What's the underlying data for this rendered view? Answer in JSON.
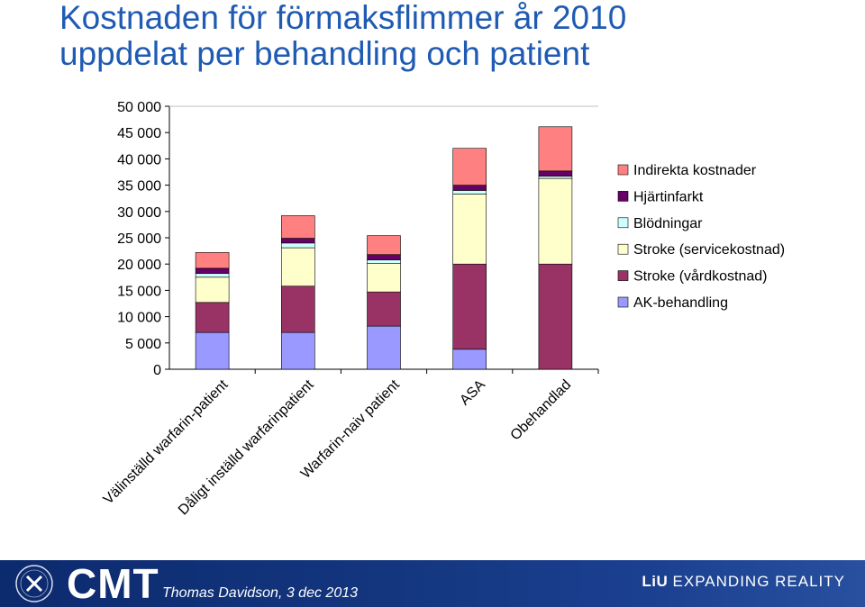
{
  "slide": {
    "title_line1": "Kostnaden för förmaksflimmer år 2010",
    "title_line2": "uppdelat per behandling och patient"
  },
  "chart_data": {
    "type": "bar",
    "stacked": true,
    "title": "",
    "xlabel": "",
    "ylabel": "",
    "ylim": [
      0,
      50000
    ],
    "yticks": [
      0,
      5000,
      10000,
      15000,
      20000,
      25000,
      30000,
      35000,
      40000,
      45000,
      50000
    ],
    "ytick_labels": [
      "0",
      "5 000",
      "10 000",
      "15 000",
      "20 000",
      "25 000",
      "30 000",
      "35 000",
      "40 000",
      "45 000",
      "50 000"
    ],
    "grid": false,
    "legend_position": "right",
    "categories": [
      "Välinställd warfarin-patient",
      "Dåligt inställd warfarinpatient",
      "Warfarin-naiv patient",
      "ASA",
      "Obehandlad"
    ],
    "series": [
      {
        "name": "AK-behandling",
        "color": "#9999ff",
        "values": [
          7000,
          7000,
          8200,
          3800,
          0
        ]
      },
      {
        "name": "Stroke (vårdkostnad)",
        "color": "#993366",
        "values": [
          5700,
          8800,
          6500,
          16200,
          20000
        ]
      },
      {
        "name": "Stroke (servicekostnad)",
        "color": "#ffffcc",
        "values": [
          4800,
          7300,
          5400,
          13300,
          16300
        ]
      },
      {
        "name": "Blödningar",
        "color": "#ccffff",
        "values": [
          700,
          900,
          700,
          700,
          400
        ]
      },
      {
        "name": "Hjärtinfarkt",
        "color": "#660066",
        "values": [
          1000,
          900,
          1000,
          1000,
          1000
        ]
      },
      {
        "name": "Indirekta kostnader",
        "color": "#ff8080",
        "values": [
          3000,
          4300,
          3600,
          7000,
          8400
        ]
      }
    ],
    "legend_order": [
      "Indirekta kostnader",
      "Hjärtinfarkt",
      "Blödningar",
      "Stroke (servicekostnad)",
      "Stroke (vårdkostnad)",
      "AK-behandling"
    ]
  },
  "footer": {
    "logo_text": "CMT",
    "presenter": "Thomas Davidson, 3 dec 2013",
    "brand_bold": "LiU",
    "brand_rest": "EXPANDING REALITY"
  }
}
